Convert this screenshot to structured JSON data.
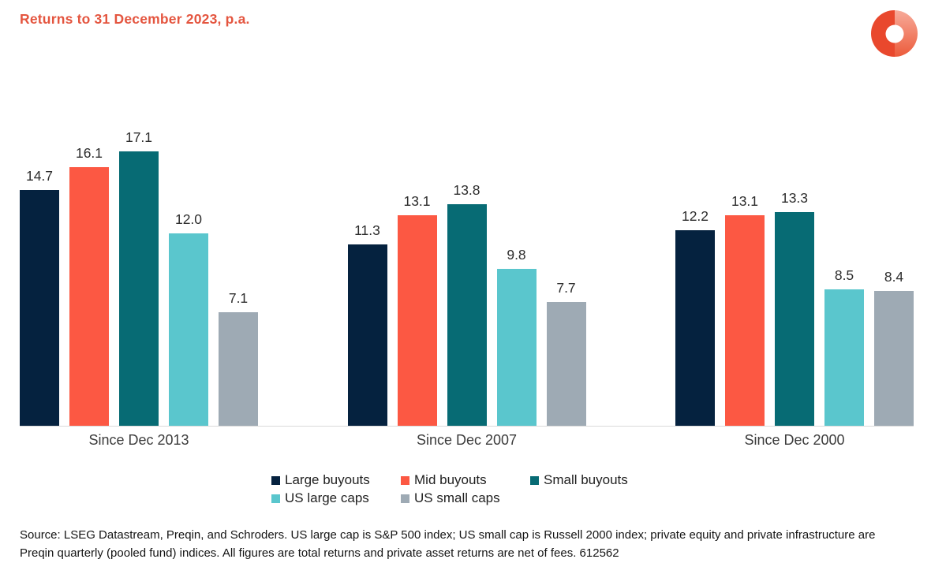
{
  "title": "Returns to 31 December 2023, p.a.",
  "chart_data": {
    "type": "bar",
    "title": "Returns to 31 December 2023, p.a.",
    "categories": [
      "Since Dec 2013",
      "Since Dec 2007",
      "Since Dec 2000"
    ],
    "series": [
      {
        "name": "Large buyouts",
        "color": "#05223F",
        "values": [
          14.7,
          11.3,
          12.2
        ]
      },
      {
        "name": "Mid buyouts",
        "color": "#FC5843",
        "values": [
          16.1,
          13.1,
          13.1
        ]
      },
      {
        "name": "Small buyouts",
        "color": "#076B74",
        "values": [
          17.1,
          13.8,
          13.3
        ]
      },
      {
        "name": "US large caps",
        "color": "#5AC6CD",
        "values": [
          12.0,
          9.8,
          8.5
        ]
      },
      {
        "name": "US small caps",
        "color": "#9EAAB4",
        "values": [
          7.1,
          7.7,
          8.4
        ]
      }
    ],
    "value_label_decimals": 1,
    "ylim": [
      0,
      17.1
    ],
    "grid": false,
    "legend_position": "bottom",
    "xlabel": "",
    "ylabel": ""
  },
  "source_note": "Source: LSEG Datastream, Preqin, and Schroders. US large cap is S&P 500 index; US small cap is Russell 2000 index; private equity and private infrastructure are Preqin quarterly (pooled fund) indices. All figures are total returns and private asset returns are net of fees. 612562",
  "theme": {
    "background": "#FFFFFF",
    "title_color": "#E4553F",
    "axis_line_color": "#DBDBDB",
    "value_label_color": "#2D2D2D",
    "category_label_color": "#3C3C3C",
    "legend_text_color": "#1F1F1F",
    "source_text_color": "#141414",
    "logo_solid": "#E9482D",
    "logo_gradient_top": "#F7AB9A",
    "logo_gradient_bottom": "#EC5B3B"
  }
}
